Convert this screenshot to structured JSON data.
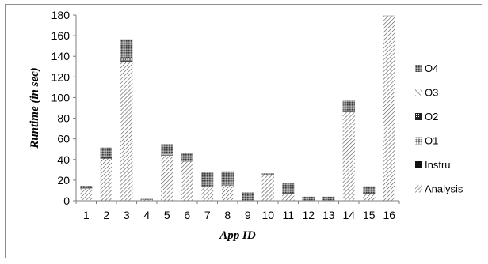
{
  "chart_data": {
    "type": "bar",
    "stacked": true,
    "categories": [
      "1",
      "2",
      "3",
      "4",
      "5",
      "6",
      "7",
      "8",
      "9",
      "10",
      "11",
      "12",
      "13",
      "14",
      "15",
      "16"
    ],
    "series": [
      {
        "name": "Analysis",
        "pattern": "diag-fine",
        "values": [
          12,
          41,
          135,
          1,
          44,
          38,
          13,
          15,
          0.5,
          25,
          7,
          0.5,
          0.5,
          86,
          7,
          179
        ]
      },
      {
        "name": "Instru",
        "pattern": "solid",
        "values": [
          0.5,
          1,
          1,
          0,
          0.5,
          0,
          0.5,
          0.5,
          0,
          0,
          0.5,
          0,
          0,
          0.5,
          0.5,
          0
        ]
      },
      {
        "name": "O1",
        "pattern": "checker-diag",
        "values": [
          0,
          0.5,
          2,
          0,
          0.5,
          0,
          0,
          0,
          0,
          0,
          0,
          0,
          0,
          0.5,
          0,
          0
        ]
      },
      {
        "name": "O2",
        "pattern": "dense-grid",
        "values": [
          0,
          0,
          0.5,
          0,
          0,
          0,
          0,
          0,
          0,
          0,
          0,
          0,
          0,
          0,
          0,
          0
        ]
      },
      {
        "name": "O3",
        "pattern": "diag-coarse",
        "values": [
          0,
          0,
          0,
          0,
          0,
          0,
          0,
          0,
          0,
          0,
          0,
          0,
          0,
          0,
          0,
          0
        ]
      },
      {
        "name": "O4",
        "pattern": "dots",
        "values": [
          2,
          9,
          18,
          1,
          10,
          8,
          14,
          13,
          7.5,
          1.5,
          10,
          3.5,
          3.5,
          10,
          6.5,
          0.5
        ]
      }
    ],
    "xlabel": "App ID",
    "ylabel": "Runtime (in sec)",
    "ylim": [
      0,
      180
    ],
    "yticks": [
      "0",
      "20",
      "40",
      "60",
      "80",
      "100",
      "120",
      "140",
      "160",
      "180"
    ],
    "grid": false,
    "legend_position": "right",
    "legend_order": [
      "O4",
      "O3",
      "O2",
      "O1",
      "Instru",
      "Analysis"
    ]
  }
}
